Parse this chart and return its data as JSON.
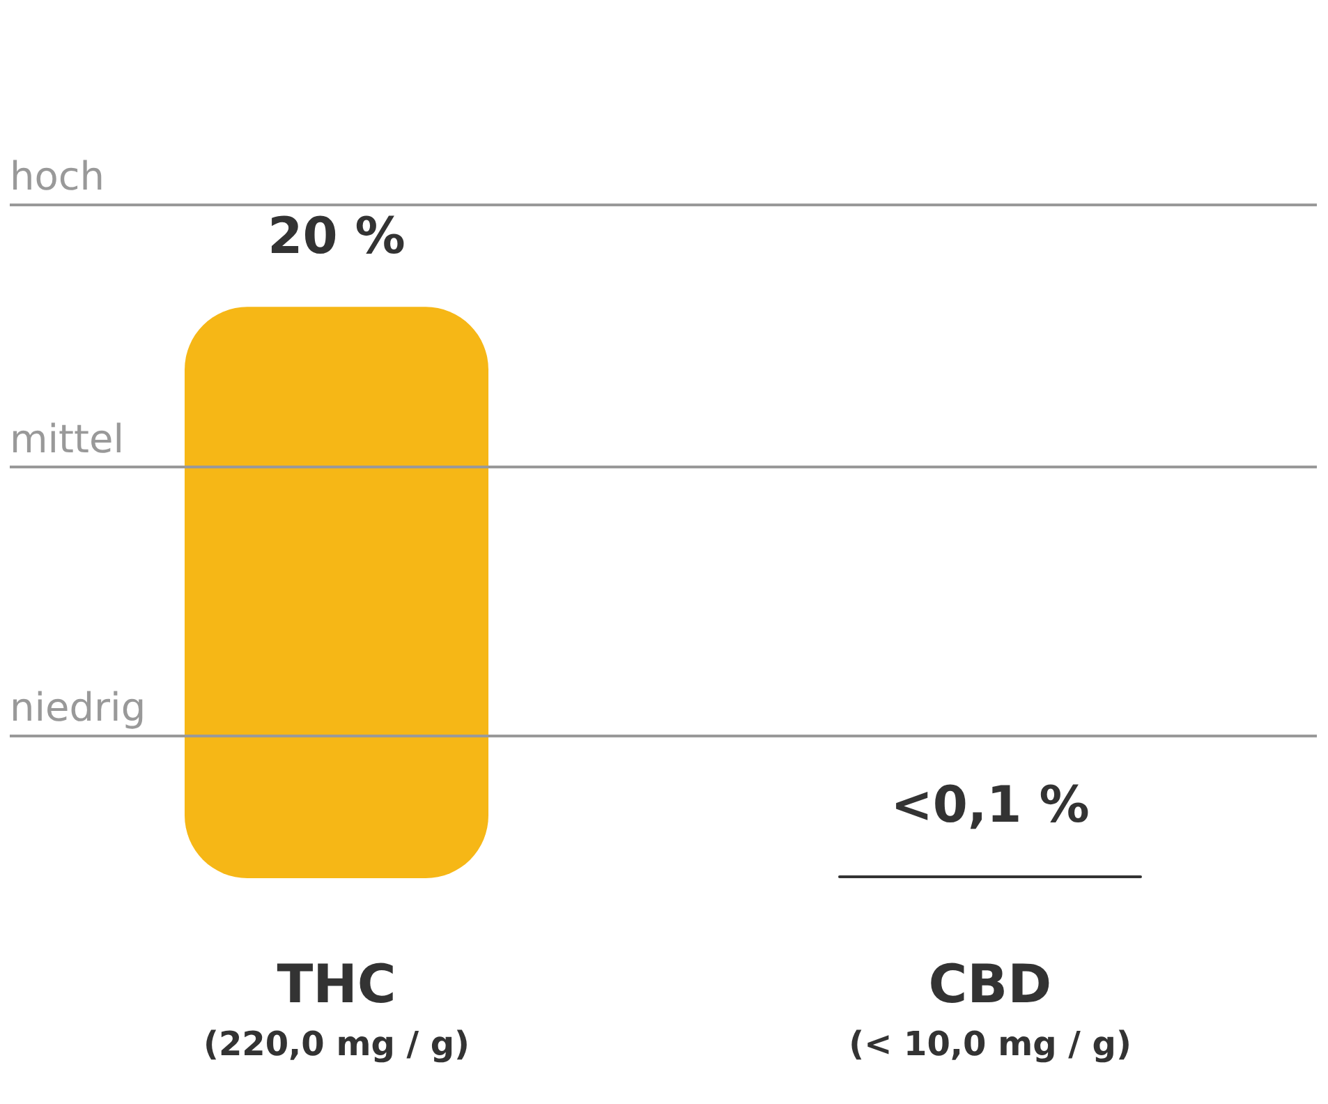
{
  "chart_data": {
    "type": "bar",
    "categories": [
      "THC\n(220,0 mg / g)",
      "CBD\n(< 10,0 mg / g)"
    ],
    "values": [
      20,
      0.1
    ],
    "colors": [
      "#f6b716",
      "#333333"
    ],
    "value_labels": [
      "20 %",
      "<0,1 %"
    ],
    "ref_lines": [
      {
        "axis": "y",
        "value": 23.6,
        "label": "hoch",
        "color": "#999999"
      },
      {
        "axis": "y",
        "value": 14.4,
        "label": "mittel",
        "color": "#999999"
      },
      {
        "axis": "y",
        "value": 5,
        "label": "niedrig",
        "color": "#999999"
      }
    ]
  }
}
